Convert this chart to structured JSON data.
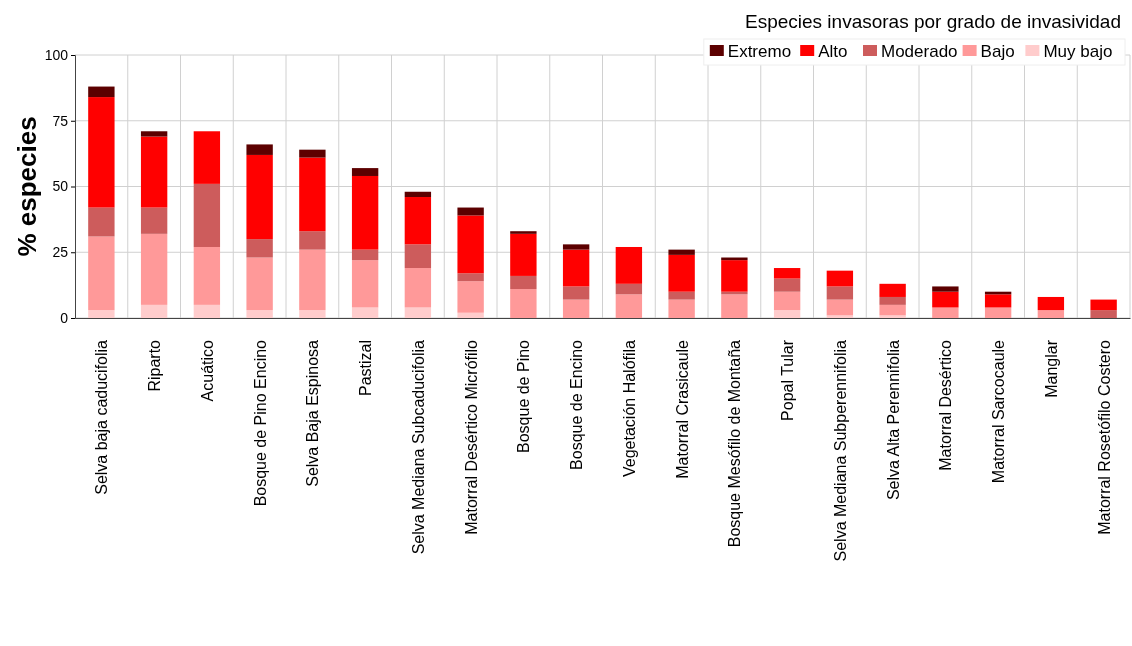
{
  "chart_data": {
    "type": "bar",
    "stacked": true,
    "ylabel": "% especies",
    "legend_title": "Especies invasoras por grado de invasividad",
    "categories": [
      "Selva baja caducifolia",
      "Riparto",
      "Acuático",
      "Bosque de Pino Encino",
      "Selva Baja Espinosa",
      "Pastizal",
      "Selva Mediana Subcaducifolia",
      "Matorral Desértico Micrófilo",
      "Bosque de Pino",
      "Bosque de Encino",
      "Vegetación Halófila",
      "Matorral Crasicaule",
      "Bosque Mesófilo de Montaña",
      "Popal Tular",
      "Selva Mediana Subperennifolia",
      "Selva Alta Perennifolia",
      "Matorral Desértico",
      "Matorral Sarcocaule",
      "Manglar",
      "Matorral Rosetófilo Costero"
    ],
    "series": [
      {
        "name": "Muy bajo",
        "color": "#ffcccc",
        "values": [
          3,
          5,
          5,
          3,
          3,
          4,
          4,
          2,
          0,
          0,
          0,
          0,
          0,
          3,
          1,
          1,
          0,
          0,
          0,
          0
        ]
      },
      {
        "name": "Bajo",
        "color": "#ff9999",
        "values": [
          28,
          27,
          22,
          20,
          23,
          18,
          15,
          12,
          11,
          7,
          9,
          7,
          9,
          7,
          6,
          4,
          4,
          4,
          3,
          0
        ]
      },
      {
        "name": "Moderado",
        "color": "#cd5c5c",
        "values": [
          11,
          10,
          24,
          7,
          7,
          4,
          9,
          3,
          5,
          5,
          4,
          3,
          1,
          5,
          5,
          3,
          0,
          0,
          0,
          3
        ]
      },
      {
        "name": "Alto",
        "color": "#ff0000",
        "values": [
          42,
          27,
          20,
          32,
          28,
          28,
          18,
          22,
          16,
          14,
          14,
          14,
          12,
          4,
          6,
          5,
          6,
          5,
          5,
          4
        ]
      },
      {
        "name": "Extremo",
        "color": "#5c0000",
        "values": [
          4,
          2,
          0,
          4,
          3,
          3,
          2,
          3,
          1,
          2,
          0,
          2,
          1,
          0,
          0,
          0,
          2,
          1,
          0,
          0
        ]
      }
    ],
    "ylim": [
      0,
      100
    ],
    "yticks": [
      0,
      25,
      50,
      75,
      100
    ],
    "grid": true,
    "legend": "top right"
  }
}
